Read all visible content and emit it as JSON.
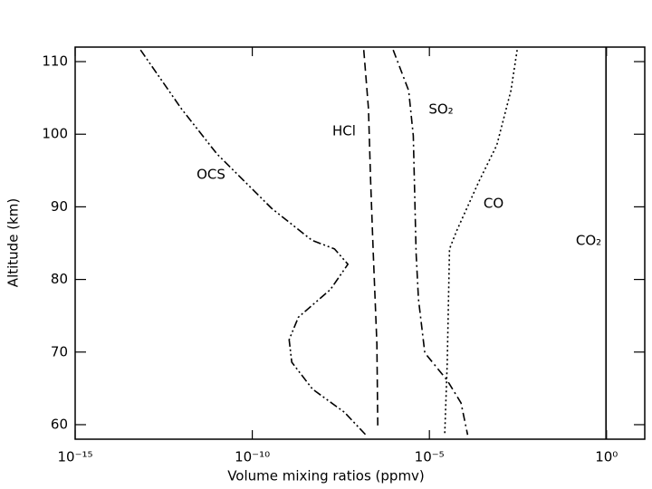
{
  "chart_data": {
    "type": "line",
    "xlabel": "Volume mixing ratios  (ppmv)",
    "ylabel": "Altitude  (km)",
    "xscale": "log",
    "xlim": [
      1e-15,
      12
    ],
    "ylim": [
      58,
      112
    ],
    "xticks": [
      {
        "value": 1e-15,
        "label": "10⁻¹⁵"
      },
      {
        "value": 1e-10,
        "label": "10⁻¹⁰"
      },
      {
        "value": 1e-05,
        "label": "10⁻⁵"
      },
      {
        "value": 1,
        "label": "10⁰"
      }
    ],
    "yticks": [
      60,
      70,
      80,
      90,
      100,
      110
    ],
    "series": [
      {
        "name": "OCS",
        "color": "#000000",
        "dash": "dash-dot-dot",
        "x": [
          7e-14,
          1e-12,
          1e-11,
          3.5e-10,
          4.8e-09,
          2.1e-08,
          5e-08,
          1.6e-08,
          2e-09,
          1.1e-09,
          1.3e-09,
          5e-09,
          4e-08,
          1.6e-07
        ],
        "y": [
          111.6,
          103.5,
          97.3,
          89.8,
          85.4,
          84.2,
          82.1,
          78.6,
          74.8,
          71.7,
          68.6,
          64.9,
          61.7,
          58.6
        ]
      },
      {
        "name": "HCl",
        "color": "#000000",
        "dash": "dashed",
        "x": [
          1.4e-07,
          1.9e-07,
          2.2e-07,
          2.6e-07,
          3.3e-07,
          3.5e-07
        ],
        "y": [
          111.6,
          103.5,
          93.5,
          83.6,
          71.1,
          59.3
        ]
      },
      {
        "name": "SO₂",
        "color": "#000000",
        "dash": "dash-dot",
        "x": [
          9.5e-07,
          2.6e-06,
          3.5e-06,
          4.2e-06,
          4.9e-06,
          7.4e-06,
          3.2e-05,
          7.8e-05,
          0.00012
        ],
        "y": [
          111.6,
          106,
          99.8,
          83.6,
          77.3,
          69.9,
          66.1,
          63.0,
          58.6
        ]
      },
      {
        "name": "CO",
        "color": "#000000",
        "dash": "dotted",
        "x": [
          0.003,
          0.002,
          0.0008,
          0.00025,
          5.9e-05,
          3.7e-05,
          3.2e-05,
          2.7e-05
        ],
        "y": [
          111.6,
          106,
          98.5,
          93.5,
          86.7,
          84.2,
          68.6,
          58.6
        ]
      },
      {
        "name": "CO₂",
        "color": "#000000",
        "dash": "solid",
        "x": [
          0.965,
          0.965
        ],
        "y": [
          58,
          112
        ]
      }
    ]
  }
}
